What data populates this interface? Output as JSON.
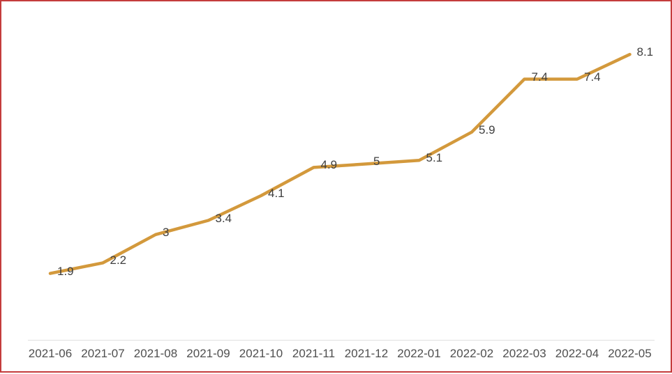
{
  "chart_data": {
    "type": "line",
    "title": "",
    "xlabel": "",
    "ylabel": "",
    "categories": [
      "2021-06",
      "2021-07",
      "2021-08",
      "2021-09",
      "2021-10",
      "2021-11",
      "2021-12",
      "2022-01",
      "2022-02",
      "2022-03",
      "2022-04",
      "2022-05"
    ],
    "values": [
      1.9,
      2.2,
      3,
      3.4,
      4.1,
      4.9,
      5,
      5.1,
      5.9,
      7.4,
      7.4,
      8.1
    ],
    "point_labels": [
      "1.9",
      "2.2",
      "3",
      "3.4",
      "4.1",
      "4.9",
      "5",
      "5.1",
      "5.9",
      "7.4",
      "7.4",
      "8.1"
    ],
    "ylim": [
      0,
      9.6
    ],
    "grid": false,
    "legend": false,
    "y_axis_visible": false,
    "colors": {
      "line": "#d3993c",
      "data_label": "#3f3f3f",
      "tick_label": "#4f4f4f",
      "axis_line": "#e0e0e0",
      "page_border": "#c43c3c",
      "background": "#ffffff"
    }
  }
}
